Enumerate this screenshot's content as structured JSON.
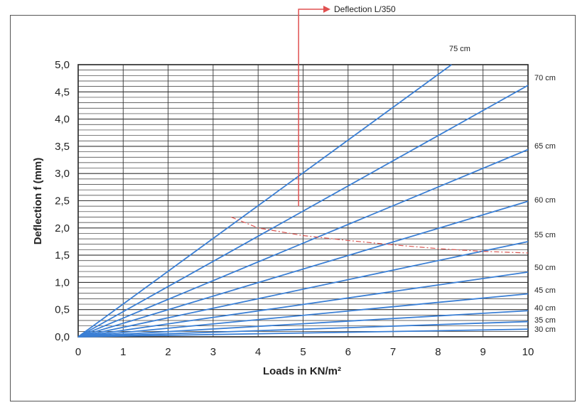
{
  "chart_data": {
    "type": "line",
    "xlabel": "Loads in KN/m²",
    "ylabel": "Deflection f (mm)",
    "xlim": [
      0,
      10
    ],
    "ylim": [
      0,
      5
    ],
    "x_ticks": [
      "0",
      "1",
      "2",
      "3",
      "4",
      "5",
      "6",
      "7",
      "8",
      "9",
      "10"
    ],
    "y_ticks": [
      "0,0",
      "0,5",
      "1,0",
      "1,5",
      "2,0",
      "2,5",
      "3,0",
      "3,5",
      "4,0",
      "4,5",
      "5,0"
    ],
    "grid": true,
    "series_color": "#3a7fd5",
    "series": [
      {
        "name": "30 cm",
        "x": [
          0,
          10
        ],
        "y": [
          0,
          0.14
        ]
      },
      {
        "name": "35 cm",
        "x": [
          0,
          10
        ],
        "y": [
          0,
          0.28
        ]
      },
      {
        "name": "40 cm",
        "x": [
          0,
          10
        ],
        "y": [
          0,
          0.48
        ]
      },
      {
        "name": "45 cm",
        "x": [
          0,
          10
        ],
        "y": [
          0,
          0.79
        ]
      },
      {
        "name": "50 cm",
        "x": [
          0,
          10
        ],
        "y": [
          0,
          1.19
        ]
      },
      {
        "name": "55 cm",
        "x": [
          0,
          10
        ],
        "y": [
          0,
          1.75
        ]
      },
      {
        "name": "60 cm",
        "x": [
          0,
          10
        ],
        "y": [
          0,
          2.49
        ]
      },
      {
        "name": "65 cm",
        "x": [
          0,
          10
        ],
        "y": [
          0,
          3.44
        ]
      },
      {
        "name": "70 cm",
        "x": [
          0,
          10
        ],
        "y": [
          0,
          4.62
        ]
      },
      {
        "name": "75 cm",
        "x": [
          0,
          8.3
        ],
        "y": [
          0,
          5.0
        ]
      }
    ],
    "limit_line": {
      "name": "Deflection L/350",
      "color": "#d9534f",
      "x": [
        3.4,
        4,
        5,
        6,
        7,
        8,
        9,
        10
      ],
      "y": [
        2.2,
        2.0,
        1.86,
        1.77,
        1.69,
        1.62,
        1.57,
        1.54
      ]
    },
    "callout": {
      "label": "Deflection L/350",
      "color": "#e05050",
      "x": 4.9,
      "y_start": 2.4
    }
  }
}
